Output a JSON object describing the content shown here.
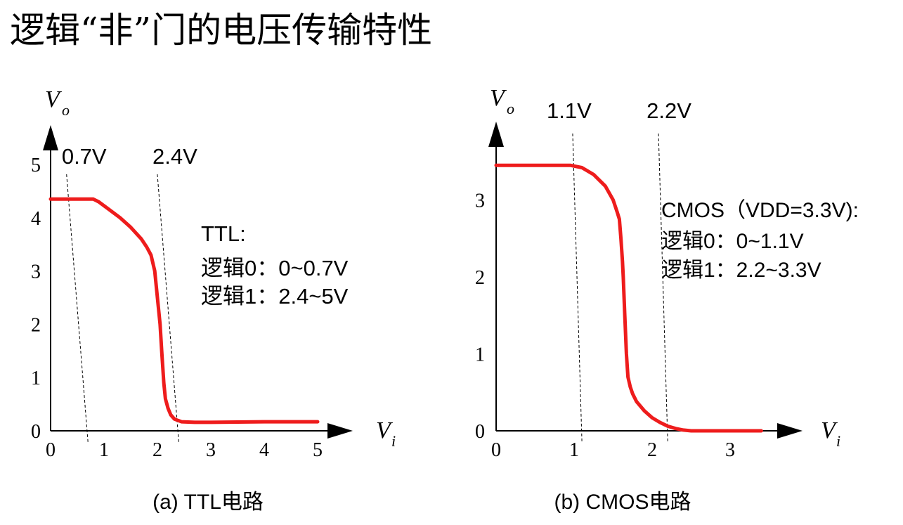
{
  "title": "逻辑“非”门的电压传输特性",
  "colors": {
    "curve": "#ee1c1c",
    "axis": "#000000",
    "marker_line": "#000000"
  },
  "chart_data": [
    {
      "type": "line",
      "caption": "(a) TTL电路",
      "xlabel": "V",
      "xlabel_sub": "i",
      "ylabel": "V",
      "ylabel_sub": "o",
      "xlim": [
        0,
        5
      ],
      "ylim": [
        0,
        5
      ],
      "xticks": [
        "0",
        "1",
        "2",
        "3",
        "4",
        "5"
      ],
      "yticks": [
        "0",
        "1",
        "2",
        "3",
        "4",
        "5"
      ],
      "markers": [
        {
          "label": "0.7V",
          "x": 0.7
        },
        {
          "label": "2.4V",
          "x": 2.4
        }
      ],
      "note": [
        "TTL:",
        "逻辑0：0~0.7V",
        "逻辑1：2.4~5V"
      ],
      "grid": false,
      "series": [
        {
          "x": [
            0,
            0.8,
            0.9,
            1.1,
            1.3,
            1.5,
            1.7,
            1.8,
            1.88,
            1.95,
            2.0,
            2.05,
            2.08,
            2.1,
            2.12,
            2.15,
            2.2,
            2.25,
            2.32,
            2.45,
            2.7,
            3.0,
            4.0,
            5.0
          ],
          "y": [
            4.35,
            4.35,
            4.3,
            4.15,
            4.0,
            3.82,
            3.6,
            3.45,
            3.3,
            3.0,
            2.5,
            2.0,
            1.5,
            1.2,
            0.9,
            0.6,
            0.42,
            0.3,
            0.22,
            0.17,
            0.16,
            0.16,
            0.17,
            0.17
          ]
        }
      ]
    },
    {
      "type": "line",
      "caption": "(b) CMOS电路",
      "xlabel": "V",
      "xlabel_sub": "i",
      "ylabel": "V",
      "ylabel_sub": "o",
      "xlim": [
        0,
        3.3
      ],
      "ylim": [
        0,
        3.3
      ],
      "xticks": [
        "0",
        "1",
        "2",
        "3"
      ],
      "yticks": [
        "0",
        "1",
        "2",
        "3"
      ],
      "markers": [
        {
          "label": "1.1V",
          "x": 1.1
        },
        {
          "label": "2.2V",
          "x": 2.2
        }
      ],
      "note": [
        "CMOS（VDD=3.3V):",
        "逻辑0：0~1.1V",
        "逻辑1：2.2~3.3V"
      ],
      "grid": false,
      "series": [
        {
          "x": [
            0,
            0.95,
            1.1,
            1.25,
            1.4,
            1.5,
            1.55,
            1.58,
            1.6,
            1.62,
            1.63,
            1.65,
            1.67,
            1.69,
            1.72,
            1.75,
            1.8,
            1.9,
            2.0,
            2.1,
            2.2,
            2.3,
            2.4,
            2.5,
            2.7,
            3.0,
            3.4
          ],
          "y": [
            3.45,
            3.45,
            3.42,
            3.33,
            3.18,
            3.0,
            2.85,
            2.75,
            2.5,
            2.2,
            2.0,
            1.5,
            1.0,
            0.7,
            0.57,
            0.48,
            0.38,
            0.26,
            0.17,
            0.11,
            0.06,
            0.03,
            0.01,
            0.0,
            0.0,
            0.0,
            0.0
          ]
        }
      ]
    }
  ]
}
